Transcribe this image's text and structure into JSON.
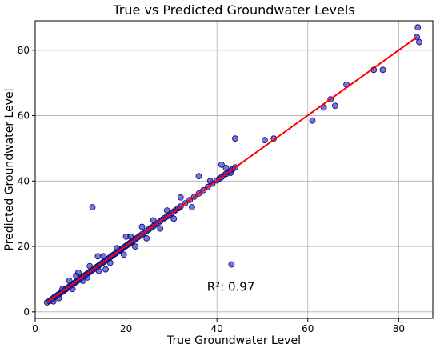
{
  "chart_data": {
    "type": "scatter",
    "title": "True vs Predicted Groundwater Levels",
    "xlabel": "True Groundwater Level",
    "ylabel": "Predicted Groundwater Level",
    "xlim": [
      0,
      87.5
    ],
    "ylim": [
      -2,
      89
    ],
    "xticks": [
      0,
      20,
      40,
      60,
      80
    ],
    "yticks": [
      0,
      20,
      40,
      60,
      80
    ],
    "grid": true,
    "annotation": "R²: 0.97",
    "annotation_pos": [
      37.8,
      6.5
    ],
    "colors": {
      "points": "#2b2bd6",
      "point_edge": "#0a0a60",
      "fit_line": "#ff0000"
    },
    "fit_line": {
      "x": [
        2.5,
        84
      ],
      "y": [
        2.8,
        84
      ]
    },
    "points": {
      "x": [
        2.6,
        3.1,
        3.5,
        3.9,
        4.2,
        4.6,
        5.0,
        5.3,
        5.6,
        5.9,
        6.2,
        6.5,
        6.8,
        7.1,
        7.4,
        7.7,
        8.0,
        8.3,
        8.6,
        8.9,
        9.2,
        9.5,
        9.8,
        10.1,
        10.4,
        10.7,
        11.0,
        11.3,
        11.6,
        11.9,
        12.2,
        12.5,
        12.8,
        13.1,
        13.4,
        13.7,
        14.0,
        14.3,
        14.6,
        14.9,
        15.2,
        15.5,
        15.8,
        16.1,
        16.4,
        16.7,
        17.0,
        17.3,
        17.6,
        17.9,
        18.2,
        18.5,
        18.8,
        19.1,
        19.4,
        19.7,
        20.0,
        20.3,
        20.6,
        20.9,
        21.2,
        21.5,
        21.8,
        22.1,
        22.5,
        23.0,
        23.5,
        24.0,
        24.5,
        25.0,
        25.5,
        26.0,
        26.5,
        27.0,
        27.5,
        28.0,
        28.5,
        29.0,
        29.5,
        30.0,
        30.5,
        31.0,
        31.5,
        32.0,
        33.0,
        34.0,
        35.0,
        36.0,
        37.0,
        38.0,
        39.0,
        40.0,
        40.5,
        41.0,
        41.5,
        42.0,
        42.5,
        43.0,
        43.5,
        44.0,
        5.2,
        6.0,
        7.5,
        8.2,
        9.0,
        10.5,
        12.0,
        14.0,
        15.0,
        16.5,
        18.0,
        19.5,
        21.0,
        22.0,
        23.5,
        24.5,
        26.0,
        27.5,
        29.0,
        30.5,
        32.0,
        34.5,
        36.0,
        38.5,
        41.0,
        42.0,
        43.0,
        12.6,
        43.2,
        44.0,
        50.5,
        52.5,
        61.0,
        63.5,
        65.0,
        66.0,
        68.5,
        74.5,
        76.5,
        84.0,
        84.5,
        84.2,
        4.0,
        11.5,
        15.5,
        20.0,
        13.8,
        9.5
      ],
      "y": [
        2.9,
        3.3,
        3.7,
        4.1,
        4.5,
        4.8,
        5.2,
        5.5,
        5.8,
        6.1,
        6.4,
        6.7,
        7.0,
        7.3,
        7.6,
        7.9,
        8.2,
        8.5,
        8.8,
        9.1,
        9.4,
        9.7,
        10.0,
        10.3,
        10.6,
        10.9,
        11.2,
        11.5,
        11.8,
        12.1,
        12.4,
        12.7,
        13.0,
        13.3,
        13.6,
        13.9,
        14.2,
        14.5,
        14.8,
        15.1,
        15.4,
        15.7,
        16.0,
        16.3,
        16.6,
        16.9,
        17.2,
        17.5,
        17.8,
        18.1,
        18.4,
        18.7,
        19.0,
        19.3,
        19.6,
        19.9,
        20.2,
        20.5,
        20.8,
        21.1,
        21.4,
        21.7,
        22.0,
        22.3,
        22.7,
        23.2,
        23.7,
        24.2,
        24.7,
        25.2,
        25.7,
        26.2,
        26.7,
        27.2,
        27.7,
        28.2,
        28.7,
        29.2,
        29.7,
        30.2,
        30.7,
        31.2,
        31.7,
        32.2,
        33.2,
        34.2,
        35.2,
        36.2,
        37.2,
        38.2,
        39.2,
        40.2,
        40.7,
        41.2,
        41.7,
        42.2,
        42.7,
        43.2,
        43.7,
        44.2,
        4.2,
        7.0,
        9.5,
        7.0,
        11.0,
        9.5,
        14.0,
        12.5,
        17.0,
        15.0,
        19.5,
        17.5,
        23.0,
        20.0,
        26.0,
        22.5,
        28.0,
        25.5,
        31.0,
        28.5,
        35.0,
        32.0,
        41.5,
        40.0,
        45.0,
        44.0,
        42.5,
        32.0,
        14.5,
        53.0,
        52.5,
        53.0,
        58.5,
        62.5,
        65.0,
        63.0,
        69.5,
        74.0,
        74.0,
        84.0,
        82.5,
        87.0,
        3.2,
        10.5,
        13.0,
        23.0,
        17.0,
        12.0
      ]
    }
  }
}
